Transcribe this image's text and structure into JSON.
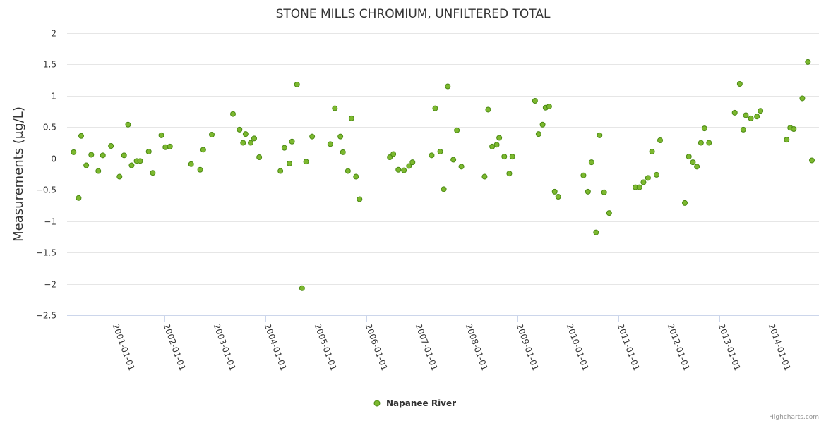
{
  "chart_data": {
    "type": "scatter",
    "title": "STONE MILLS CHROMIUM, UNFILTERED TOTAL",
    "xlabel": "",
    "ylabel": "Measurements (µg/L)",
    "ylim": [
      -2.5,
      2
    ],
    "xlim": [
      2000.07,
      2014.98
    ],
    "y_ticks": [
      "2",
      "1.5",
      "1",
      "0.5",
      "0",
      "−0.5",
      "−1",
      "−1.5",
      "−2",
      "−2.5"
    ],
    "y_tick_values": [
      2,
      1.5,
      1,
      0.5,
      0,
      -0.5,
      -1,
      -1.5,
      -2,
      -2.5
    ],
    "x_ticks": [
      "2001-01-01",
      "2002-01-01",
      "2003-01-01",
      "2004-01-01",
      "2005-01-01",
      "2006-01-01",
      "2007-01-01",
      "2008-01-01",
      "2009-01-01",
      "2010-01-01",
      "2011-01-01",
      "2012-01-01",
      "2013-01-01",
      "2014-01-01"
    ],
    "x_tick_values": [
      2001,
      2002,
      2003,
      2004,
      2005,
      2006,
      2007,
      2008,
      2009,
      2010,
      2011,
      2012,
      2013,
      2014
    ],
    "grid": true,
    "legend_position": "bottom-center",
    "credit": "Highcharts.com",
    "series": [
      {
        "name": "Napanee River",
        "color": "#7cb82f",
        "x": [
          2000.2,
          2000.3,
          2000.35,
          2000.45,
          2000.55,
          2000.69,
          2000.78,
          2000.94,
          2001.11,
          2001.2,
          2001.28,
          2001.35,
          2001.45,
          2001.52,
          2001.69,
          2001.77,
          2001.94,
          2002.02,
          2002.11,
          2002.53,
          2002.71,
          2002.77,
          2002.94,
          2003.36,
          2003.49,
          2003.56,
          2003.61,
          2003.71,
          2003.78,
          2003.88,
          2004.3,
          2004.38,
          2004.48,
          2004.53,
          2004.63,
          2004.73,
          2004.81,
          2004.93,
          2005.29,
          2005.38,
          2005.49,
          2005.54,
          2005.64,
          2005.71,
          2005.8,
          2005.87,
          2006.47,
          2006.54,
          2006.64,
          2006.75,
          2006.85,
          2006.92,
          2007.3,
          2007.37,
          2007.47,
          2007.54,
          2007.62,
          2007.73,
          2007.8,
          2007.89,
          2008.35,
          2008.42,
          2008.5,
          2008.59,
          2008.64,
          2008.74,
          2008.84,
          2008.9,
          2009.35,
          2009.42,
          2009.5,
          2009.56,
          2009.63,
          2009.74,
          2009.81,
          2010.31,
          2010.4,
          2010.47,
          2010.56,
          2010.63,
          2010.72,
          2010.82,
          2011.34,
          2011.42,
          2011.5,
          2011.59,
          2011.67,
          2011.76,
          2011.83,
          2012.32,
          2012.4,
          2012.48,
          2012.56,
          2012.64,
          2012.71,
          2012.8,
          2013.31,
          2013.41,
          2013.48,
          2013.53,
          2013.63,
          2013.75,
          2013.82,
          2014.34,
          2014.41,
          2014.48,
          2014.65,
          2014.76,
          2014.84
        ],
        "y": [
          0.1,
          -0.63,
          0.36,
          -0.11,
          0.06,
          -0.2,
          0.05,
          0.2,
          -0.29,
          0.05,
          0.54,
          -0.11,
          -0.04,
          -0.04,
          0.11,
          -0.23,
          0.37,
          0.18,
          0.19,
          -0.09,
          -0.18,
          0.14,
          0.38,
          0.71,
          0.46,
          0.25,
          0.39,
          0.25,
          0.32,
          0.02,
          -0.2,
          0.17,
          -0.08,
          0.27,
          1.18,
          -2.07,
          -0.05,
          0.35,
          0.23,
          0.8,
          0.35,
          0.1,
          -0.2,
          0.64,
          -0.29,
          -0.65,
          0.02,
          0.07,
          -0.18,
          -0.19,
          -0.12,
          -0.06,
          0.05,
          0.8,
          0.11,
          -0.49,
          1.15,
          -0.02,
          0.45,
          -0.13,
          -0.29,
          0.78,
          0.19,
          0.22,
          0.33,
          0.03,
          -0.24,
          0.03,
          0.92,
          0.39,
          0.54,
          0.81,
          0.83,
          -0.53,
          -0.61,
          -0.27,
          -0.53,
          -0.06,
          -1.18,
          0.37,
          -0.54,
          -0.87,
          -0.46,
          -0.46,
          -0.38,
          -0.31,
          0.11,
          -0.26,
          0.29,
          -0.71,
          0.03,
          -0.06,
          -0.13,
          0.25,
          0.48,
          0.25,
          0.73,
          1.19,
          0.46,
          0.69,
          0.64,
          0.67,
          0.76,
          0.3,
          0.49,
          0.47,
          0.96,
          1.54,
          -0.03
        ]
      }
    ]
  }
}
